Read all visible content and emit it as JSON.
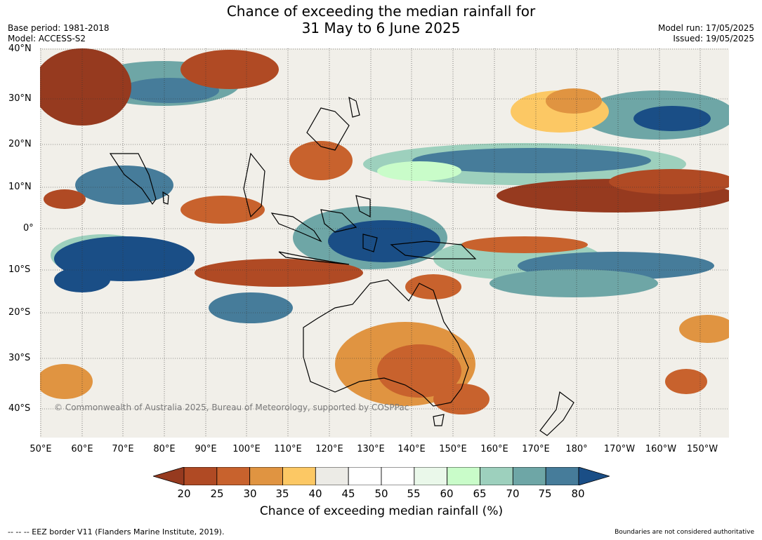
{
  "title": {
    "line1": "Chance of exceeding the median rainfall for",
    "line2": "31 May to 6 June 2025"
  },
  "meta_left": {
    "base_period": "Base period: 1981-2018",
    "model": "Model: ACCESS-S2"
  },
  "meta_right": {
    "model_run": "Model run: 17/05/2025",
    "issued": "Issued: 19/05/2025"
  },
  "lat_labels": [
    "40°N",
    "30°N",
    "20°N",
    "10°N",
    "0°",
    "10°S",
    "20°S",
    "30°S",
    "40°S"
  ],
  "lon_labels": [
    "50°E",
    "60°E",
    "70°E",
    "80°E",
    "90°E",
    "100°E",
    "110°E",
    "120°E",
    "130°E",
    "140°E",
    "150°E",
    "160°E",
    "170°E",
    "180°",
    "170°W",
    "160°W",
    "150°W"
  ],
  "copyright": "© Commonwealth of Australia 2025, Bureau of Meteorology, supported by COSPPac",
  "colorbar": {
    "ticks": [
      "20",
      "25",
      "30",
      "35",
      "40",
      "45",
      "50",
      "55",
      "60",
      "65",
      "70",
      "75",
      "80"
    ],
    "colors": [
      "#b04a24",
      "#c8622d",
      "#e09441",
      "#fcc864",
      "#ecebe6",
      "#ffffff",
      "#ffffff",
      "#eaf8ea",
      "#c9fcc9",
      "#9dd0bd",
      "#6ea6a6",
      "#467c9a"
    ],
    "under_color": "#963a1f",
    "over_color": "#1a4e86",
    "label": "Chance of exceeding median rainfall (%)"
  },
  "footer": {
    "left": "--  --  -- EEZ border V11 (Flanders Marine Institute, 2019).",
    "right": "Boundaries are not considered authoritative"
  }
}
